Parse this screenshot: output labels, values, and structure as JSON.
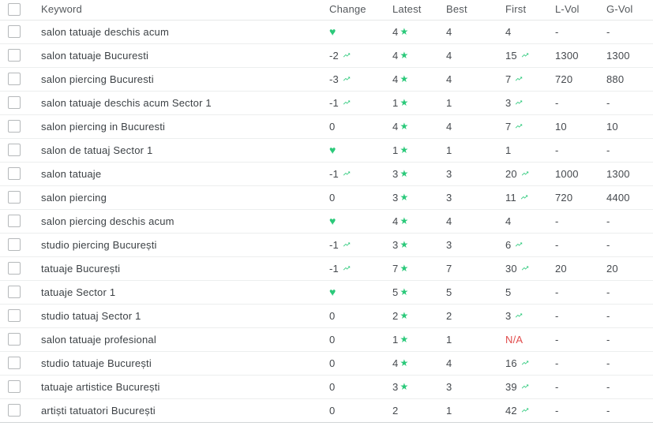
{
  "colors": {
    "green": "#2bc97a",
    "red": "#e14c4c"
  },
  "icons": {
    "heart": "♥",
    "star": "★",
    "trend": "trending-up"
  },
  "table": {
    "columns": [
      "Keyword",
      "Change",
      "Latest",
      "Best",
      "First",
      "L-Vol",
      "G-Vol"
    ],
    "rows": [
      {
        "keyword": "salon tatuaje deschis acum",
        "change": {
          "value": "",
          "icon": "heart"
        },
        "latest": {
          "value": "4",
          "star": true
        },
        "best": "4",
        "first": {
          "value": "4",
          "icon": ""
        },
        "l_vol": "-",
        "g_vol": "-"
      },
      {
        "keyword": "salon tatuaje Bucuresti",
        "change": {
          "value": "-2",
          "icon": "trend"
        },
        "latest": {
          "value": "4",
          "star": true
        },
        "best": "4",
        "first": {
          "value": "15",
          "icon": "trend"
        },
        "l_vol": "1300",
        "g_vol": "1300"
      },
      {
        "keyword": "salon piercing Bucuresti",
        "change": {
          "value": "-3",
          "icon": "trend"
        },
        "latest": {
          "value": "4",
          "star": true
        },
        "best": "4",
        "first": {
          "value": "7",
          "icon": "trend"
        },
        "l_vol": "720",
        "g_vol": "880"
      },
      {
        "keyword": "salon tatuaje deschis acum Sector 1",
        "change": {
          "value": "-1",
          "icon": "trend"
        },
        "latest": {
          "value": "1",
          "star": true
        },
        "best": "1",
        "first": {
          "value": "3",
          "icon": "trend"
        },
        "l_vol": "-",
        "g_vol": "-"
      },
      {
        "keyword": "salon piercing in Bucuresti",
        "change": {
          "value": "0",
          "icon": ""
        },
        "latest": {
          "value": "4",
          "star": true
        },
        "best": "4",
        "first": {
          "value": "7",
          "icon": "trend"
        },
        "l_vol": "10",
        "g_vol": "10"
      },
      {
        "keyword": "salon de tatuaj Sector 1",
        "change": {
          "value": "",
          "icon": "heart"
        },
        "latest": {
          "value": "1",
          "star": true
        },
        "best": "1",
        "first": {
          "value": "1",
          "icon": ""
        },
        "l_vol": "-",
        "g_vol": "-"
      },
      {
        "keyword": "salon tatuaje",
        "change": {
          "value": "-1",
          "icon": "trend"
        },
        "latest": {
          "value": "3",
          "star": true
        },
        "best": "3",
        "first": {
          "value": "20",
          "icon": "trend"
        },
        "l_vol": "1000",
        "g_vol": "1300"
      },
      {
        "keyword": "salon piercing",
        "change": {
          "value": "0",
          "icon": ""
        },
        "latest": {
          "value": "3",
          "star": true
        },
        "best": "3",
        "first": {
          "value": "11",
          "icon": "trend"
        },
        "l_vol": "720",
        "g_vol": "4400"
      },
      {
        "keyword": "salon piercing deschis acum",
        "change": {
          "value": "",
          "icon": "heart"
        },
        "latest": {
          "value": "4",
          "star": true
        },
        "best": "4",
        "first": {
          "value": "4",
          "icon": ""
        },
        "l_vol": "-",
        "g_vol": "-"
      },
      {
        "keyword": "studio piercing București",
        "change": {
          "value": "-1",
          "icon": "trend"
        },
        "latest": {
          "value": "3",
          "star": true
        },
        "best": "3",
        "first": {
          "value": "6",
          "icon": "trend"
        },
        "l_vol": "-",
        "g_vol": "-"
      },
      {
        "keyword": "tatuaje București",
        "change": {
          "value": "-1",
          "icon": "trend"
        },
        "latest": {
          "value": "7",
          "star": true
        },
        "best": "7",
        "first": {
          "value": "30",
          "icon": "trend"
        },
        "l_vol": "20",
        "g_vol": "20"
      },
      {
        "keyword": "tatuaje Sector 1",
        "change": {
          "value": "",
          "icon": "heart"
        },
        "latest": {
          "value": "5",
          "star": true
        },
        "best": "5",
        "first": {
          "value": "5",
          "icon": ""
        },
        "l_vol": "-",
        "g_vol": "-"
      },
      {
        "keyword": "studio tatuaj Sector 1",
        "change": {
          "value": "0",
          "icon": ""
        },
        "latest": {
          "value": "2",
          "star": true
        },
        "best": "2",
        "first": {
          "value": "3",
          "icon": "trend"
        },
        "l_vol": "-",
        "g_vol": "-"
      },
      {
        "keyword": "salon tatuaje profesional",
        "change": {
          "value": "0",
          "icon": ""
        },
        "latest": {
          "value": "1",
          "star": true
        },
        "best": "1",
        "first": {
          "value": "N/A",
          "icon": ""
        },
        "l_vol": "-",
        "g_vol": "-"
      },
      {
        "keyword": "studio tatuaje București",
        "change": {
          "value": "0",
          "icon": ""
        },
        "latest": {
          "value": "4",
          "star": true
        },
        "best": "4",
        "first": {
          "value": "16",
          "icon": "trend"
        },
        "l_vol": "-",
        "g_vol": "-"
      },
      {
        "keyword": "tatuaje artistice București",
        "change": {
          "value": "0",
          "icon": ""
        },
        "latest": {
          "value": "3",
          "star": true
        },
        "best": "3",
        "first": {
          "value": "39",
          "icon": "trend"
        },
        "l_vol": "-",
        "g_vol": "-"
      },
      {
        "keyword": "artiști tatuatori București",
        "change": {
          "value": "0",
          "icon": ""
        },
        "latest": {
          "value": "2",
          "star": false
        },
        "best": "1",
        "first": {
          "value": "42",
          "icon": "trend"
        },
        "l_vol": "-",
        "g_vol": "-"
      }
    ]
  }
}
